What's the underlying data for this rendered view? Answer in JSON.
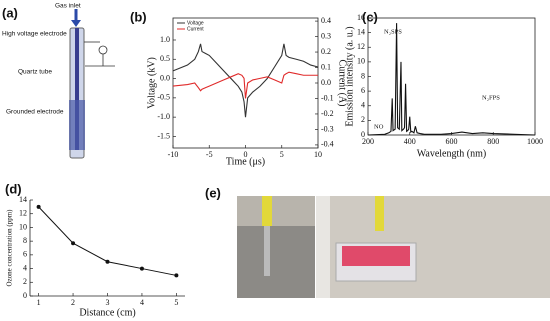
{
  "diagram": {
    "panel_label": "(a)",
    "gas_inlet": "Gas inlet",
    "hv_electrode": "High voltage electrode",
    "tube": "Quartz tube",
    "ground_electrode": "Grounded electrode"
  },
  "photo": {
    "panel_label": "(e)"
  },
  "chart_data": [
    {
      "type": "line",
      "panel_label": "(b)",
      "x_label": "Time (μs)",
      "y_label": "Voltage (kV)",
      "y2_label": "Current (A)",
      "x": [
        -10,
        -8,
        -7,
        -6.5,
        -6.2,
        -6,
        -5.5,
        -5,
        -4,
        -3,
        -2,
        -1,
        -0.5,
        -0.2,
        0,
        0.3,
        1,
        2,
        3,
        4,
        5,
        5.3,
        5.6,
        6,
        7,
        8,
        9,
        10
      ],
      "series": [
        {
          "name": "Voltage",
          "color": "#333333",
          "values": [
            0.2,
            0.35,
            0.5,
            0.7,
            0.9,
            0.7,
            0.65,
            0.6,
            0.4,
            0.2,
            0.0,
            -0.2,
            -0.35,
            -0.6,
            -1.0,
            -0.5,
            -0.35,
            -0.2,
            0.0,
            0.3,
            0.6,
            0.9,
            0.6,
            0.55,
            0.5,
            0.45,
            0.35,
            0.3
          ]
        },
        {
          "name": "Current",
          "color": "#e02a2a",
          "axis": "y2",
          "values": [
            -0.02,
            -0.01,
            0.0,
            -0.03,
            -0.05,
            -0.04,
            -0.03,
            -0.02,
            0.0,
            0.02,
            0.04,
            0.06,
            0.05,
            0.03,
            -0.1,
            0.0,
            0.02,
            0.03,
            0.04,
            0.02,
            0.0,
            0.05,
            0.06,
            0.07,
            0.06,
            0.05,
            0.05,
            0.05
          ]
        }
      ],
      "xlim": [
        -10,
        10
      ],
      "xticks": [
        -10,
        -5,
        0,
        5,
        10
      ],
      "ylim": [
        -1.8,
        1.57
      ],
      "yticks": [
        {
          "value": 1.0,
          "label": "1.0"
        },
        0.5,
        {
          "value": 0,
          "label": "0.0"
        },
        -0.5,
        {
          "value": -1.0,
          "label": "-1.0"
        },
        -1.5
      ],
      "y2lim": [
        -0.42,
        0.42
      ],
      "y2ticks": [
        0.4,
        0.3,
        0.2,
        0.1,
        {
          "value": 0,
          "label": "0.0"
        },
        -0.1,
        -0.2,
        -0.3,
        -0.4
      ],
      "legend": "upper left"
    },
    {
      "type": "line",
      "panel_label": "(c)",
      "x_label": "Wavelength (nm)",
      "y_label": "Emission intensity (a. u.)",
      "x": [
        200,
        280,
        300,
        310,
        316,
        320,
        330,
        337,
        342,
        350,
        358,
        362,
        370,
        375,
        380,
        385,
        390,
        395,
        400,
        405,
        410,
        420,
        427,
        435,
        450,
        470,
        500,
        550,
        600,
        650,
        700,
        750,
        800,
        900,
        1000
      ],
      "series": [
        {
          "name": null,
          "color": "#111111",
          "values": [
            0,
            0.1,
            0.3,
            0.5,
            5.0,
            0.6,
            0.8,
            15.3,
            1.0,
            0.8,
            10.0,
            0.6,
            0.8,
            1.0,
            7.0,
            0.5,
            0.6,
            0.8,
            2.5,
            0.4,
            0.5,
            0.3,
            1.2,
            0.3,
            0.2,
            0.1,
            0.1,
            0.1,
            0.2,
            0.4,
            0.2,
            0.3,
            0.2,
            0.1,
            0
          ]
        }
      ],
      "xlim": [
        200,
        1000
      ],
      "xticks": [
        200,
        400,
        600,
        800,
        1000
      ],
      "ylim": [
        0,
        16
      ],
      "yticks": [
        0,
        2,
        4,
        6,
        8,
        10,
        12,
        14,
        16
      ],
      "annotations": [
        {
          "text": "N₂SPS",
          "color": "#e02a2a"
        },
        {
          "text": "NO",
          "color": "#e02a2a"
        },
        {
          "text": "N₂FPS",
          "color": "#e02a2a"
        }
      ]
    },
    {
      "type": "line",
      "panel_label": "(d)",
      "x_label": "Distance (cm)",
      "y_label": "Ozone concentration (ppm)",
      "markers": true,
      "x": [
        1,
        2,
        3,
        4,
        5
      ],
      "series": [
        {
          "name": null,
          "color": "#111111",
          "values": [
            13,
            7.7,
            5.0,
            4.0,
            3.0
          ]
        }
      ],
      "xlim": [
        0.75,
        5.25
      ],
      "xticks": [
        1,
        2,
        3,
        4,
        5
      ],
      "ylim": [
        0,
        14
      ],
      "yticks": [
        0,
        2,
        4,
        6,
        8,
        10,
        12,
        14
      ]
    }
  ]
}
